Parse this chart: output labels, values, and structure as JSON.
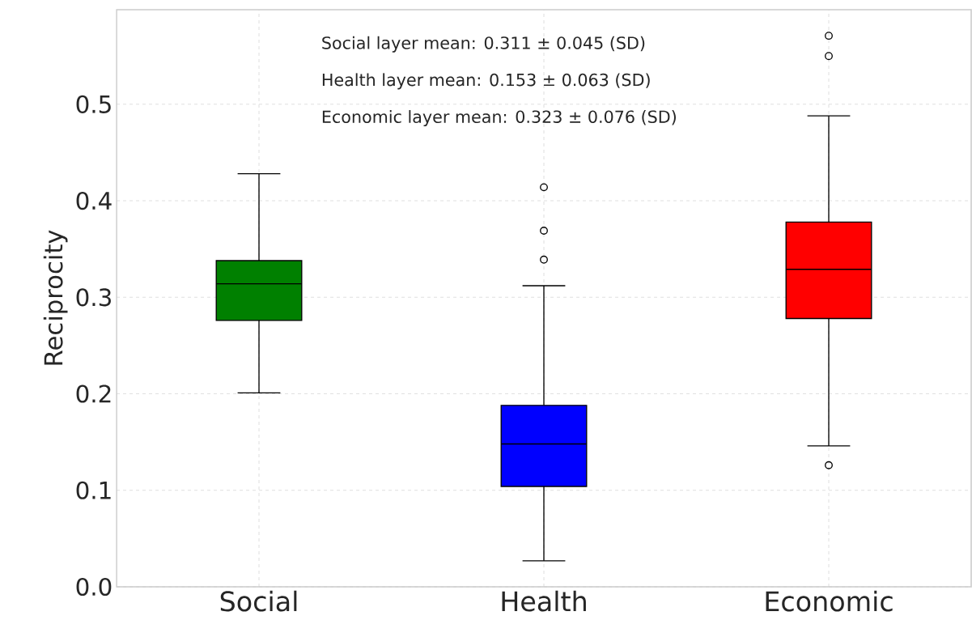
{
  "chart_data": {
    "type": "box",
    "ylabel": "Reciprocity",
    "categories": [
      "Social",
      "Health",
      "Economic"
    ],
    "boxes": [
      {
        "low": 0.201,
        "q1": 0.276,
        "median": 0.314,
        "q3": 0.338,
        "high": 0.428
      },
      {
        "low": 0.027,
        "q1": 0.104,
        "median": 0.148,
        "q3": 0.188,
        "high": 0.312,
        "outliers": [
          0.339,
          0.369,
          0.414
        ]
      },
      {
        "low": 0.146,
        "q1": 0.278,
        "median": 0.329,
        "q3": 0.378,
        "high": 0.488,
        "outliers": [
          0.126,
          0.55,
          0.571
        ]
      }
    ],
    "colors": [
      "#008000",
      "#0000ff",
      "#ff0000"
    ],
    "ylim": [
      0,
      0.598
    ],
    "yticks": [
      {
        "value": 0,
        "label": "0.0"
      },
      0.1,
      0.2,
      0.3,
      0.4,
      0.5
    ],
    "grid": true,
    "annotations": [
      "Social layer mean: 0.311 ± 0.045 (SD)",
      "Health layer mean: 0.153 ± 0.063 (SD)",
      "Economic layer mean: 0.323 ± 0.076 (SD)"
    ]
  }
}
